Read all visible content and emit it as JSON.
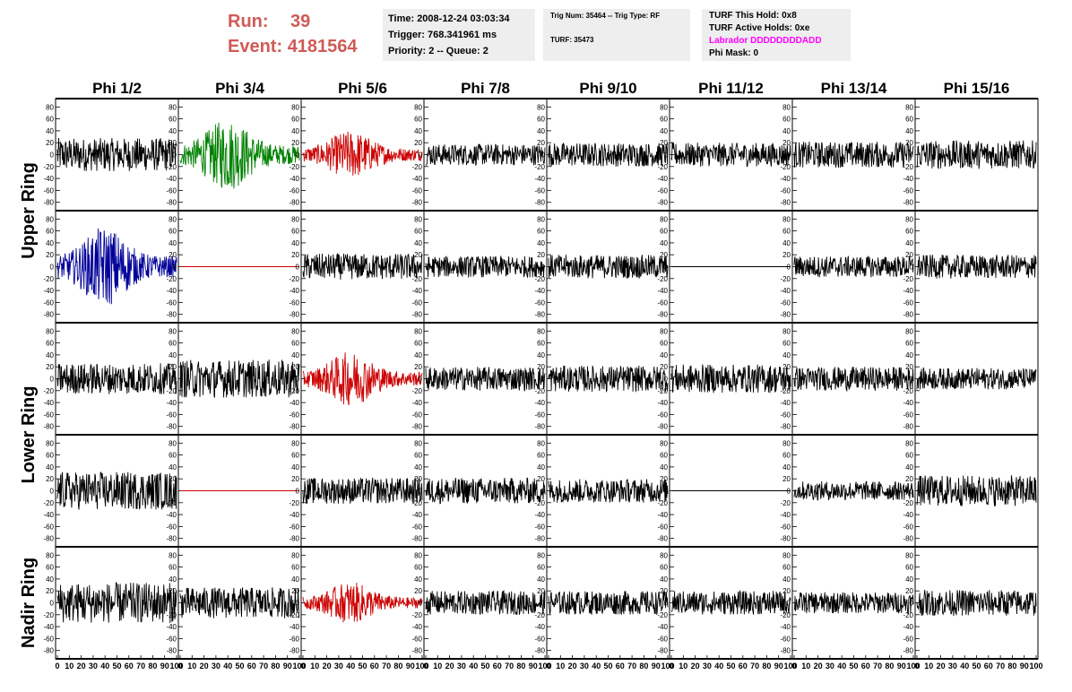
{
  "header": {
    "run_label": "Run:",
    "run_value": "39",
    "event_label": "Event:",
    "event_value": "4181564",
    "info1": [
      "Time: 2008-12-24 03:03:34",
      "Trigger: 768.341961 ms",
      "Priority: 2 -- Queue: 2"
    ],
    "info2": [
      "Trig Num: 35464 -- Trig Type: RF",
      "TURF: 35473"
    ],
    "info3": [
      "TURF This Hold: 0x8",
      "TURF Active Holds: 0xe",
      "Labrador DDDDDDDDADD",
      "Phi Mask: 0"
    ]
  },
  "chart_data": {
    "type": "line",
    "column_titles": [
      "Phi 1/2",
      "Phi 3/4",
      "Phi 5/6",
      "Phi 7/8",
      "Phi 9/10",
      "Phi 11/12",
      "Phi 13/14",
      "Phi 15/16"
    ],
    "ring_labels": [
      {
        "text": "Upper Ring",
        "rows": [
          0,
          1
        ]
      },
      {
        "text": "Lower Ring",
        "rows": [
          2,
          3
        ]
      },
      {
        "text": "Nadir Ring",
        "rows": [
          4
        ]
      }
    ],
    "xlim": [
      0,
      100
    ],
    "ylim": [
      -85,
      85
    ],
    "y_ticks": [
      -80,
      -60,
      -40,
      -20,
      0,
      20,
      40,
      60,
      80
    ],
    "x_tick_labels": [
      "0",
      "10",
      "20",
      "30",
      "40",
      "50",
      "60",
      "70",
      "80",
      "90",
      "100"
    ],
    "panels": [
      [
        {
          "color": "#000000",
          "amp": 28
        },
        {
          "color": "#008000",
          "amp": 45,
          "burst": true
        },
        {
          "color": "#cc0000",
          "amp": 30,
          "burst": true
        },
        {
          "color": "#000000",
          "amp": 18
        },
        {
          "color": "#000000",
          "amp": 20
        },
        {
          "color": "#000000",
          "amp": 20
        },
        {
          "color": "#000000",
          "amp": 22
        },
        {
          "color": "#000000",
          "amp": 24
        }
      ],
      [
        {
          "color": "#000099",
          "amp": 50,
          "burst": true
        },
        {
          "color": "#cc0000",
          "amp": 0
        },
        {
          "color": "#000000",
          "amp": 22
        },
        {
          "color": "#000000",
          "amp": 18
        },
        {
          "color": "#000000",
          "amp": 20
        },
        {
          "color": "#000000",
          "amp": 0
        },
        {
          "color": "#000000",
          "amp": 18
        },
        {
          "color": "#000000",
          "amp": 20
        }
      ],
      [
        {
          "color": "#000000",
          "amp": 26
        },
        {
          "color": "#000000",
          "amp": 32
        },
        {
          "color": "#cc0000",
          "amp": 34,
          "burst": true
        },
        {
          "color": "#000000",
          "amp": 20
        },
        {
          "color": "#000000",
          "amp": 22
        },
        {
          "color": "#000000",
          "amp": 24
        },
        {
          "color": "#000000",
          "amp": 20
        },
        {
          "color": "#000000",
          "amp": 18
        }
      ],
      [
        {
          "color": "#000000",
          "amp": 32
        },
        {
          "color": "#cc0000",
          "amp": 0
        },
        {
          "color": "#000000",
          "amp": 22
        },
        {
          "color": "#000000",
          "amp": 22
        },
        {
          "color": "#000000",
          "amp": 20
        },
        {
          "color": "#000000",
          "amp": 0
        },
        {
          "color": "#000000",
          "amp": 16
        },
        {
          "color": "#000000",
          "amp": 26
        }
      ],
      [
        {
          "color": "#000000",
          "amp": 34
        },
        {
          "color": "#000000",
          "amp": 26
        },
        {
          "color": "#cc0000",
          "amp": 26,
          "burst": true
        },
        {
          "color": "#000000",
          "amp": 20
        },
        {
          "color": "#000000",
          "amp": 20
        },
        {
          "color": "#000000",
          "amp": 20
        },
        {
          "color": "#000000",
          "amp": 18
        },
        {
          "color": "#000000",
          "amp": 22
        }
      ]
    ]
  }
}
